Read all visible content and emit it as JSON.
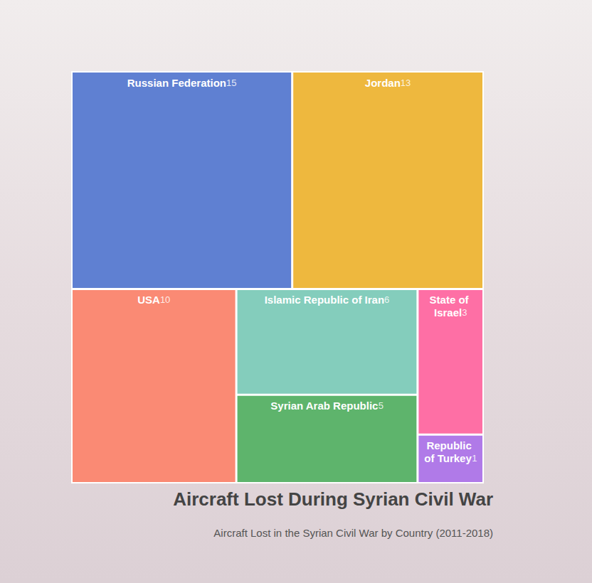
{
  "chart_data": {
    "type": "treemap",
    "title": "Aircraft Lost During Syrian Civil War",
    "subtitle": "Aircraft Lost in the Syrian Civil War by Country (2011-2018)",
    "categories": [
      "USA",
      "State of Israel",
      "Islamic Republic of Iran",
      "Jordan",
      "Russian Federation",
      "Syrian Arab Republic",
      "Republic of Turkey"
    ],
    "values": [
      10,
      3,
      6,
      13,
      15,
      5,
      1
    ],
    "colors": [
      "#fa8a74",
      "#fe6fa5",
      "#84cdbc",
      "#eeb83e",
      "#5f80d2",
      "#5eb46c",
      "#b07ae8"
    ],
    "data_labels": true
  }
}
